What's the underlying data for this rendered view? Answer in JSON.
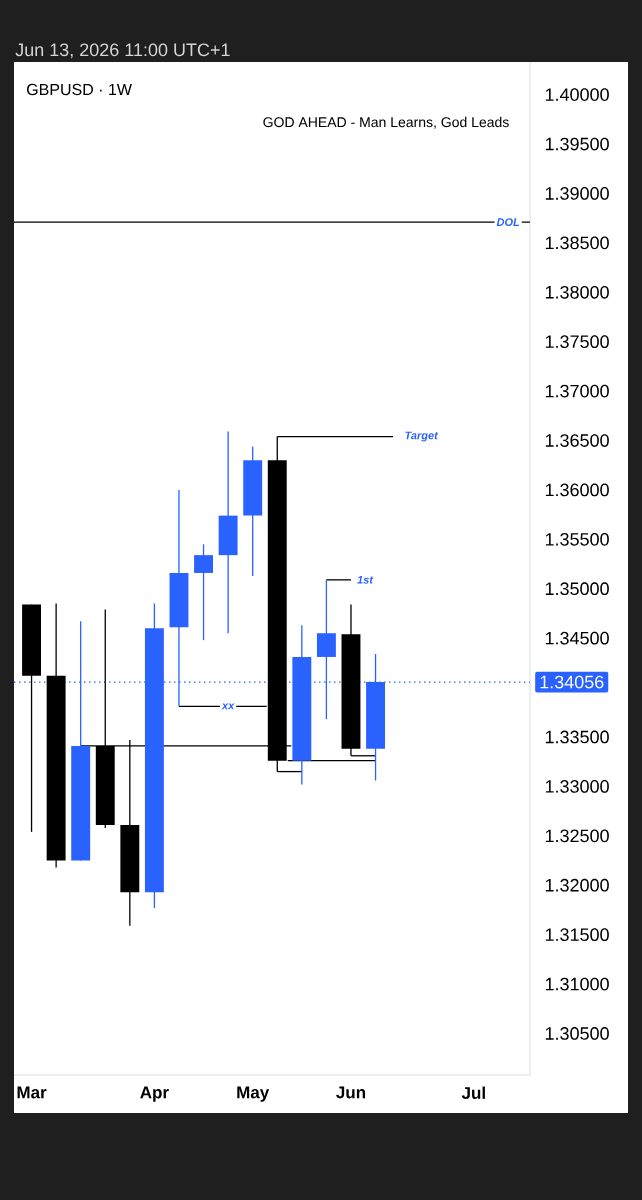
{
  "chart_data": {
    "type": "candlestick",
    "title": "GBPUSD · 1W",
    "subtitle": "GOD AHEAD - Man Learns, God Leads",
    "annotations": [
      "Jun 13, 2026 11:00 UTC+1",
      {
        "text": "xx",
        "x": "2026-04-27",
        "y": 1.3381
      },
      {
        "text": "Target",
        "x": "2026-06-21",
        "y": 1.3654
      },
      {
        "text": "1st",
        "x": "2026-06-05",
        "y": 1.3509
      }
    ],
    "x": [
      "2026-03-02",
      "2026-03-09",
      "2026-03-16",
      "2026-03-23",
      "2026-03-30",
      "2026-04-06",
      "2026-04-13",
      "2026-04-20",
      "2026-04-27",
      "2026-05-04",
      "2026-05-11",
      "2026-05-18",
      "2026-05-25",
      "2026-06-01",
      "2026-06-08"
    ],
    "ohlc": [
      [
        1.3484,
        1.3484,
        1.3254,
        1.3412
      ],
      [
        1.3412,
        1.3485,
        1.3218,
        1.3225
      ],
      [
        1.3225,
        1.3467,
        1.3225,
        1.3341
      ],
      [
        1.3341,
        1.3479,
        1.3258,
        1.3261
      ],
      [
        1.3261,
        1.3347,
        1.3159,
        1.3193
      ],
      [
        1.3193,
        1.3485,
        1.3177,
        1.346
      ],
      [
        1.3461,
        1.36,
        1.3381,
        1.3516
      ],
      [
        1.3516,
        1.3545,
        1.3448,
        1.3534
      ],
      [
        1.3534,
        1.3659,
        1.3455,
        1.3574
      ],
      [
        1.3574,
        1.3644,
        1.3513,
        1.363
      ],
      [
        1.363,
        1.3654,
        1.3315,
        1.3326
      ],
      [
        1.3326,
        1.3463,
        1.3302,
        1.3431
      ],
      [
        1.3431,
        1.3509,
        1.3368,
        1.3455
      ],
      [
        1.3454,
        1.3484,
        1.3331,
        1.3338
      ],
      [
        1.3338,
        1.3434,
        1.3306,
        1.34056
      ]
    ],
    "colors": [
      "#000000",
      "#000000",
      "#2962ff",
      "#000000",
      "#000000",
      "#2962ff",
      "#2962ff",
      "#2962ff",
      "#2962ff",
      "#2962ff",
      "#000000",
      "#2962ff",
      "#2962ff",
      "#000000",
      "#2962ff"
    ],
    "series": [
      {
        "type": "line",
        "color": "#000000",
        "x": [
          "2026-04-13",
          "2026-05-08"
        ],
        "values": [
          1.3381,
          1.3381
        ]
      },
      {
        "type": "line",
        "color": "#000000",
        "x": [
          "2026-05-11",
          "2026-06-13"
        ],
        "values": [
          1.3654,
          1.3654
        ]
      },
      {
        "type": "line",
        "color": "#000000",
        "x": [
          "2026-05-25",
          "2026-06-01"
        ],
        "values": [
          1.3509,
          1.3509
        ]
      },
      {
        "type": "line",
        "color": "#000000",
        "x": [
          "2026-03-16",
          "2026-05-15"
        ],
        "values": [
          1.3341,
          1.3341
        ]
      },
      {
        "type": "line",
        "color": "#000000",
        "x": [
          "2026-05-14",
          "2026-06-08"
        ],
        "values": [
          1.3326,
          1.3326
        ]
      },
      {
        "type": "line",
        "color": "#000000",
        "x": [
          "2026-05-11",
          "2026-05-18"
        ],
        "values": [
          1.3315,
          1.3315
        ]
      },
      {
        "type": "line",
        "color": "#000000",
        "x": [
          "2026-06-01",
          "2026-06-08"
        ],
        "values": [
          1.3331,
          1.3331
        ]
      }
    ],
    "ref_lines": [
      {
        "axis": "y",
        "value": 1.3871,
        "label": "DOL",
        "color": "#000000",
        "line_style": "solid"
      },
      {
        "axis": "y",
        "value": 1.34056,
        "label": "1.34056",
        "color": "#2962ff",
        "line_style": "dotted"
      }
    ],
    "xlim": [
      "2026-02-25",
      "2026-07-22"
    ],
    "xticks": [
      {
        "value": "2026-03-02",
        "label": "Mar"
      },
      {
        "value": "2026-04-06",
        "label": "Apr"
      },
      {
        "value": "2026-05-04",
        "label": "May"
      },
      {
        "value": "2026-06-01",
        "label": "Jun"
      },
      {
        "value": "2026-07-06",
        "label": "Jul"
      }
    ],
    "ylim": [
      1.3008,
      1.4033
    ],
    "yticks": [
      {
        "value": 1.305,
        "label": "1.30500"
      },
      {
        "value": 1.31,
        "label": "1.31000"
      },
      {
        "value": 1.315,
        "label": "1.31500"
      },
      {
        "value": 1.32,
        "label": "1.32000"
      },
      {
        "value": 1.325,
        "label": "1.32500"
      },
      {
        "value": 1.33,
        "label": "1.33000"
      },
      {
        "value": 1.335,
        "label": "1.33500"
      },
      {
        "value": 1.345,
        "label": "1.34500"
      },
      {
        "value": 1.35,
        "label": "1.35000"
      },
      {
        "value": 1.355,
        "label": "1.35500"
      },
      {
        "value": 1.36,
        "label": "1.36000"
      },
      {
        "value": 1.365,
        "label": "1.36500"
      },
      {
        "value": 1.37,
        "label": "1.37000"
      },
      {
        "value": 1.375,
        "label": "1.37500"
      },
      {
        "value": 1.38,
        "label": "1.38000"
      },
      {
        "value": 1.385,
        "label": "1.38500"
      },
      {
        "value": 1.39,
        "label": "1.39000"
      },
      {
        "value": 1.395,
        "label": "1.39500"
      },
      {
        "value": 1.4,
        "label": "1.40000"
      }
    ]
  }
}
